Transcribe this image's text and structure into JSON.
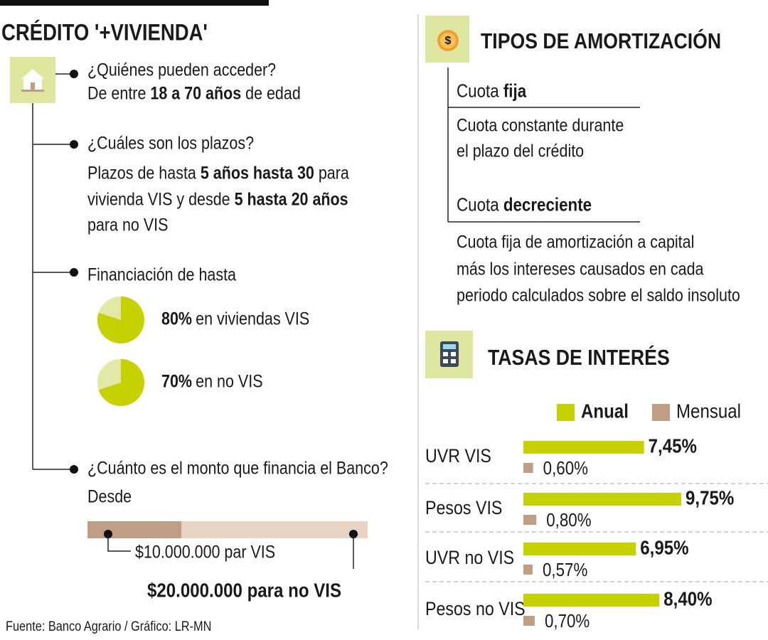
{
  "title": "CRÉDITO '+VIVIENDA'",
  "items": [
    {
      "question": "¿Quiénes pueden acceder?",
      "answer": [
        [
          {
            "text": "De entre "
          },
          {
            "text": "18 a 70 años",
            "bold": true
          },
          {
            "text": " de edad"
          }
        ]
      ]
    },
    {
      "question": "¿Cuáles son los plazos?",
      "answer": [
        [
          {
            "text": "Plazos de hasta "
          },
          {
            "text": "5 años hasta 30",
            "bold": true
          },
          {
            "text": " para"
          }
        ],
        [
          {
            "text": "vivienda VIS y desde "
          },
          {
            "text": "5 hasta 20 años",
            "bold": true
          }
        ],
        [
          {
            "text": "para no VIS"
          }
        ]
      ]
    },
    {
      "question": "Financiación de hasta"
    },
    {
      "question": "¿Cuánto es el monto que financia el Banco?",
      "answer": [
        [
          {
            "text": "Desde"
          }
        ]
      ],
      "min": "$10.000.000 par VIS",
      "max": "$20.000.000 para no VIS"
    }
  ],
  "amortization": {
    "title": "TIPOS DE AMORTIZACIÓN",
    "types": [
      {
        "name": [
          {
            "text": "Cuota "
          },
          {
            "text": "fija",
            "bold": true
          }
        ],
        "description": [
          "Cuota constante durante",
          "el plazo del crédito"
        ]
      },
      {
        "name": [
          {
            "text": "Cuota "
          },
          {
            "text": "decreciente",
            "bold": true
          }
        ],
        "description": [
          "Cuota fija de amortización a capital",
          "más los intereses causados en cada",
          "periodo calculados sobre el saldo insoluto"
        ]
      }
    ]
  },
  "rates_title": "TASAS DE INTERÉS",
  "source": "Fuente: Banco Agrario / Gráfico: LR-MN",
  "chart_data": [
    {
      "type": "pie",
      "values": [
        80
      ],
      "value_labels": [
        "80%"
      ],
      "label": "en viviendas VIS",
      "color": "#c5d200",
      "rest_color": "#e2e8a6"
    },
    {
      "type": "pie",
      "values": [
        70
      ],
      "value_labels": [
        "70%"
      ],
      "label": "en no VIS",
      "color": "#c5d200",
      "rest_color": "#e2e8a6"
    },
    {
      "type": "bar",
      "orientation": "horizontal",
      "categories": [
        "UVR VIS",
        "Pesos VIS",
        "UVR no VIS",
        "Pesos no VIS"
      ],
      "series": [
        {
          "name": "Anual",
          "color": "#c5d200",
          "values": [
            7.45,
            9.75,
            6.95,
            8.4
          ],
          "value_labels": [
            "7,45%",
            "9,75%",
            "6,95%",
            "8,40%"
          ]
        },
        {
          "name": "Mensual",
          "color": "#bf9e85",
          "values": [
            0.6,
            0.8,
            0.57,
            0.7
          ],
          "value_labels": [
            "0,60%",
            "0,80%",
            "0,57%",
            "0,70%"
          ]
        }
      ]
    }
  ]
}
